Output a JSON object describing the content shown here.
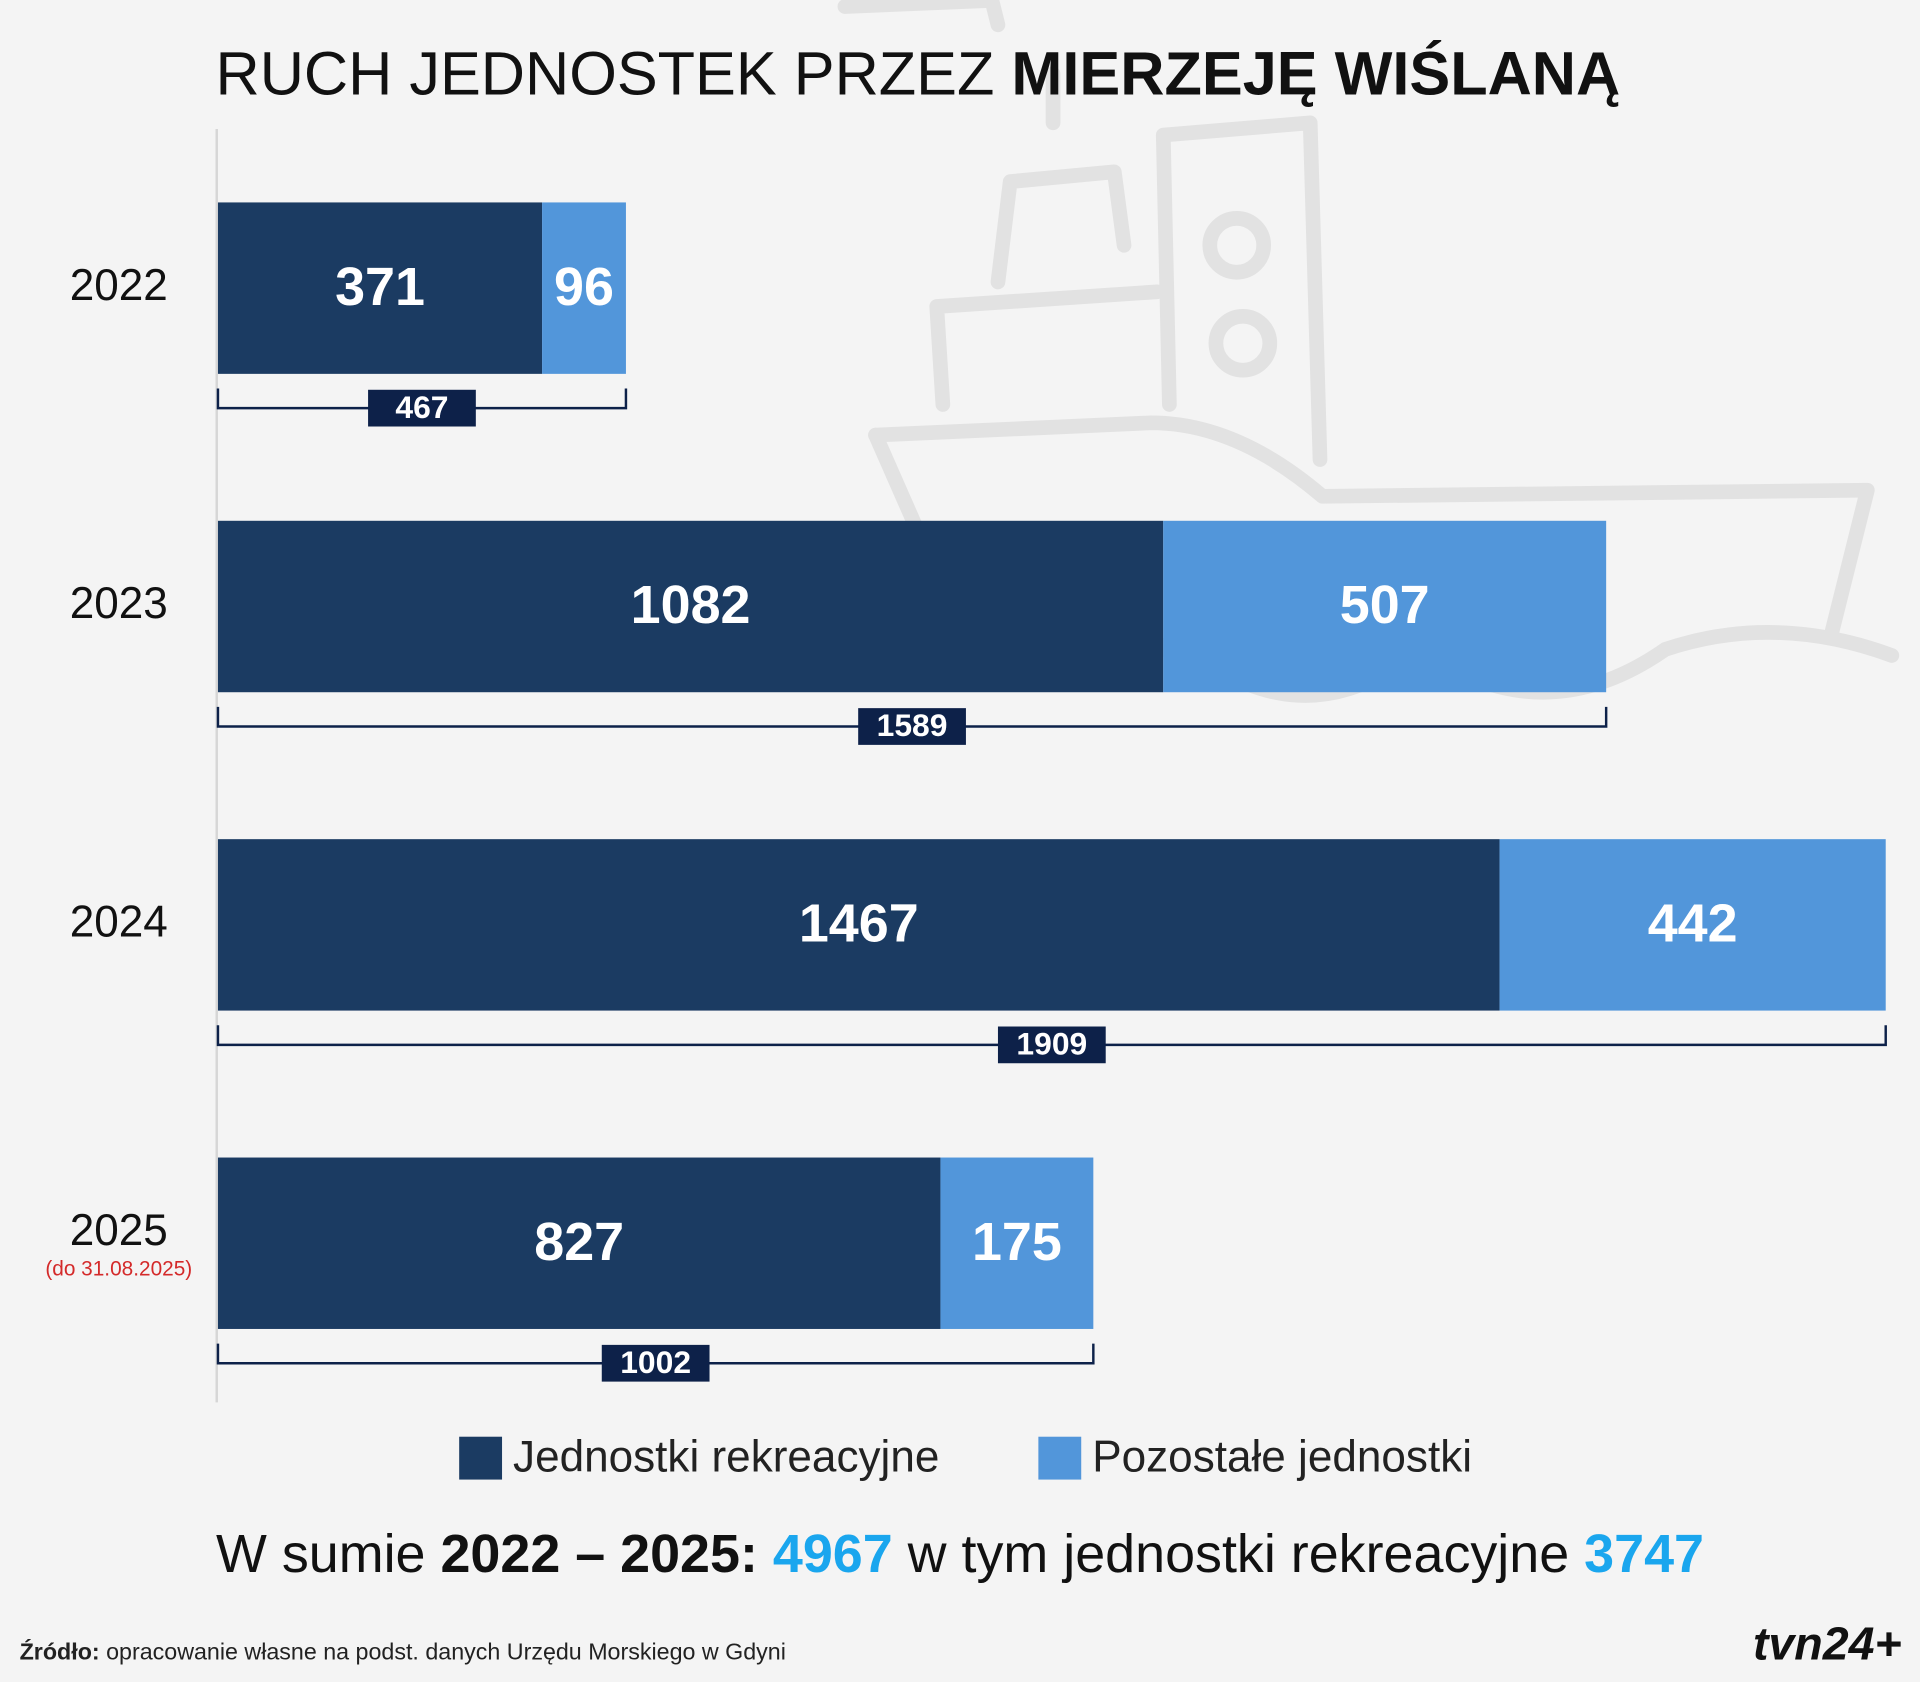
{
  "chart_data": {
    "type": "stacked-bar-horizontal",
    "title": {
      "regular": "RUCH JEDNOSTEK PRZEZ",
      "bold": "MIERZEJĘ WIŚLANĄ"
    },
    "categories": [
      "2022",
      "2023",
      "2024",
      "2025"
    ],
    "category_note": {
      "category": 3,
      "text": "(do 31.08.2025)"
    },
    "series": [
      {
        "name": "Jednostki rekreacyjne",
        "color": "#1b3b62",
        "values": [
          371,
          1082,
          1467,
          827
        ]
      },
      {
        "name": "Pozostałe jednostki",
        "color": "#5296da",
        "values": [
          96,
          507,
          442,
          175
        ]
      }
    ],
    "totals": [
      467,
      1589,
      1909,
      1002
    ],
    "xlim": [
      0,
      1909
    ],
    "summary": {
      "lead": "W sumie",
      "period": "2022 – 2025:",
      "total": 4967,
      "middle": "w tym jednostki rekreacyjne",
      "recreational": 3747
    },
    "source": {
      "label": "Źródło:",
      "text": "opracowanie własne na podst. danych Urzędu Morskiego w Gdyni"
    },
    "logo": "tvn24+"
  }
}
